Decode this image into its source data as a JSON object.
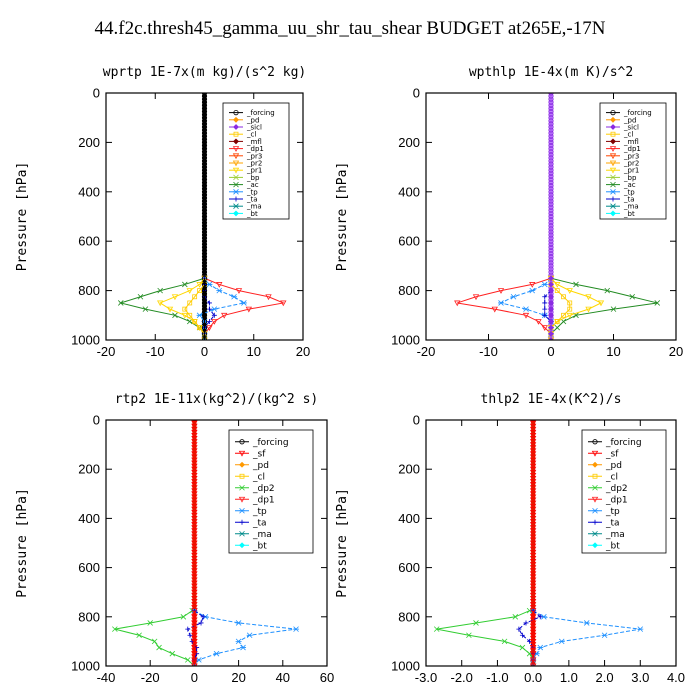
{
  "title": "44.f2c.thresh45_gamma_uu_shr_tau_shear  BUDGET at265E,-17N",
  "colors": {
    "forcing": "#000000",
    "sf": "#ff0000",
    "pd": "#ff9900",
    "sicl": "#8a2be2",
    "cl": "#ffcc00",
    "mfl": "#800000",
    "dp1": "#ff2020",
    "dp2": "#32cd32",
    "pr3": "#ff4500",
    "pr2": "#ffa500",
    "pr1": "#ffd700",
    "bp": "#9acd32",
    "ac": "#228b22",
    "tp": "#1e90ff",
    "ta": "#0000cd",
    "ma": "#008b8b",
    "bt": "#00ffff"
  },
  "chart_data": [
    {
      "type": "line",
      "title": "wprtp  1E-7x(m kg)/(s^2 kg)",
      "ylabel": "Pressure [hPa]",
      "xlim": [
        -20,
        20
      ],
      "ylim": [
        1000,
        0
      ],
      "xticks": [
        "-20",
        "-10",
        "0",
        "10",
        "20"
      ],
      "yticks": [
        "0",
        "200",
        "400",
        "600",
        "800",
        "1000"
      ],
      "legend": [
        "_forcing",
        "_pd",
        "_sicl",
        "_cl",
        "_mfl",
        "_dp1",
        "_pr3",
        "_pr2",
        "_pr1",
        "_bp",
        "_ac",
        "_tp",
        "_ta",
        "_ma",
        "_bt"
      ],
      "legend_keys": [
        "forcing",
        "pd",
        "sicl",
        "cl",
        "mfl",
        "dp1",
        "pr3",
        "pr2",
        "pr1",
        "bp",
        "ac",
        "tp",
        "ta",
        "ma",
        "bt"
      ],
      "y": [
        750,
        775,
        800,
        825,
        850,
        875,
        900,
        925,
        950,
        975,
        1000
      ],
      "series": [
        {
          "key": "ac",
          "values": [
            0,
            -4,
            -9,
            -13,
            -17,
            -12,
            -6,
            -3,
            -1,
            0,
            0
          ]
        },
        {
          "key": "dp1",
          "values": [
            0,
            3,
            7,
            13,
            16,
            9,
            4,
            2,
            1,
            0,
            0
          ]
        },
        {
          "key": "tp",
          "values": [
            0,
            1,
            3,
            6,
            8,
            2,
            -1,
            0,
            0,
            0,
            0
          ]
        },
        {
          "key": "pr1",
          "values": [
            0,
            -1,
            -3,
            -6,
            -9,
            -7,
            -4,
            -2,
            -1,
            0,
            0
          ]
        },
        {
          "key": "cl",
          "values": [
            0,
            0,
            -1,
            -2,
            -3,
            -4,
            -3,
            -2,
            -1,
            0,
            0
          ]
        },
        {
          "key": "ta",
          "values": [
            0,
            0,
            0,
            0,
            1,
            1,
            2,
            1,
            0,
            0,
            0
          ]
        },
        {
          "key": "forcing",
          "values": [
            0,
            0,
            0,
            0,
            0,
            0,
            0,
            0,
            0,
            0,
            0
          ]
        }
      ]
    },
    {
      "type": "line",
      "title": "wpthlp  1E-4x(m K)/s^2",
      "ylabel": "Pressure [hPa]",
      "xlim": [
        -20,
        20
      ],
      "ylim": [
        1000,
        0
      ],
      "xticks": [
        "-20",
        "-10",
        "0",
        "10",
        "20"
      ],
      "yticks": [
        "0",
        "200",
        "400",
        "600",
        "800",
        "1000"
      ],
      "legend": [
        "_forcing",
        "_pd",
        "_sicl",
        "_cl",
        "_mfl",
        "_dp1",
        "_pr3",
        "_pr2",
        "_pr1",
        "_bp",
        "_ac",
        "_tp",
        "_ta",
        "_ma",
        "_bt"
      ],
      "legend_keys": [
        "forcing",
        "pd",
        "sicl",
        "cl",
        "mfl",
        "dp1",
        "pr3",
        "pr2",
        "pr1",
        "bp",
        "ac",
        "tp",
        "ta",
        "ma",
        "bt"
      ],
      "y": [
        750,
        775,
        800,
        825,
        850,
        875,
        900,
        925,
        950,
        975,
        1000
      ],
      "series": [
        {
          "key": "ac",
          "values": [
            0,
            4,
            9,
            13,
            17,
            10,
            4,
            2,
            1,
            0,
            0
          ]
        },
        {
          "key": "dp1",
          "values": [
            0,
            -3,
            -8,
            -12,
            -15,
            -9,
            -4,
            -2,
            -1,
            0,
            0
          ]
        },
        {
          "key": "tp",
          "values": [
            0,
            -1,
            -3,
            -6,
            -8,
            -4,
            -1,
            0,
            0,
            0,
            0
          ]
        },
        {
          "key": "pr1",
          "values": [
            0,
            1,
            3,
            6,
            8,
            6,
            3,
            1,
            0,
            0,
            0
          ]
        },
        {
          "key": "cl",
          "values": [
            0,
            0,
            1,
            2,
            3,
            3,
            2,
            1,
            0,
            0,
            0
          ]
        },
        {
          "key": "ta",
          "values": [
            0,
            0,
            0,
            -1,
            -1,
            -1,
            -1,
            0,
            0,
            0,
            0
          ]
        },
        {
          "key": "sicl",
          "values": [
            0,
            0,
            0,
            0,
            0,
            0,
            0,
            0,
            0,
            0,
            0
          ]
        }
      ]
    },
    {
      "type": "line",
      "title": "rtp2  1E-11x(kg^2)/(kg^2 s)",
      "ylabel": "Pressure [hPa]",
      "xlim": [
        -40,
        60
      ],
      "ylim": [
        1000,
        0
      ],
      "xticks": [
        "-40",
        "-20",
        "0",
        "20",
        "40",
        "60"
      ],
      "yticks": [
        "0",
        "200",
        "400",
        "600",
        "800",
        "1000"
      ],
      "legend": [
        "_forcing",
        "_sf",
        "_pd",
        "_cl",
        "_dp2",
        "_dp1",
        "_tp",
        "_ta",
        "_ma",
        "_bt"
      ],
      "legend_keys": [
        "forcing",
        "sf",
        "pd",
        "cl",
        "dp2",
        "dp1",
        "tp",
        "ta",
        "ma",
        "bt"
      ],
      "y": [
        775,
        800,
        825,
        850,
        875,
        900,
        925,
        950,
        975,
        1000
      ],
      "series": [
        {
          "key": "dp2",
          "values": [
            -1,
            -5,
            -20,
            -36,
            -25,
            -18,
            -16,
            -10,
            -3,
            0
          ]
        },
        {
          "key": "tp",
          "values": [
            0,
            5,
            20,
            46,
            25,
            20,
            22,
            10,
            2,
            0
          ]
        },
        {
          "key": "ta",
          "values": [
            0,
            4,
            3,
            -3,
            -2,
            -1,
            1,
            1,
            0,
            0
          ]
        },
        {
          "key": "sf",
          "values": [
            0,
            0,
            0,
            0,
            0,
            0,
            0,
            0,
            0,
            0
          ]
        }
      ]
    },
    {
      "type": "line",
      "title": "thlp2  1E-4x(K^2)/s",
      "ylabel": "Pressure [hPa]",
      "xlim": [
        -3,
        4
      ],
      "ylim": [
        1000,
        0
      ],
      "xticks": [
        "-3.0",
        "-2.0",
        "-1.0",
        "0.0",
        "1.0",
        "2.0",
        "3.0",
        "4.0"
      ],
      "yticks": [
        "0",
        "200",
        "400",
        "600",
        "800",
        "1000"
      ],
      "legend": [
        "_forcing",
        "_sf",
        "_pd",
        "_cl",
        "_dp2",
        "_dp1",
        "_tp",
        "_ta",
        "_ma",
        "_bt"
      ],
      "legend_keys": [
        "forcing",
        "sf",
        "pd",
        "cl",
        "dp2",
        "dp1",
        "tp",
        "ta",
        "ma",
        "bt"
      ],
      "y": [
        775,
        800,
        825,
        850,
        875,
        900,
        925,
        950,
        975,
        1000
      ],
      "series": [
        {
          "key": "dp2",
          "values": [
            -0.1,
            -0.5,
            -1.6,
            -2.7,
            -1.8,
            -0.8,
            -0.3,
            -0.1,
            0,
            0
          ]
        },
        {
          "key": "tp",
          "values": [
            0,
            0.3,
            1.5,
            3.0,
            2.0,
            0.8,
            0.2,
            0.1,
            0,
            0
          ]
        },
        {
          "key": "ta",
          "values": [
            0,
            0.2,
            -0.2,
            -0.4,
            -0.3,
            -0.1,
            0,
            0,
            0,
            0
          ]
        },
        {
          "key": "sf",
          "values": [
            0,
            0,
            0,
            0,
            0,
            0,
            0,
            0,
            0,
            0
          ]
        }
      ]
    }
  ]
}
